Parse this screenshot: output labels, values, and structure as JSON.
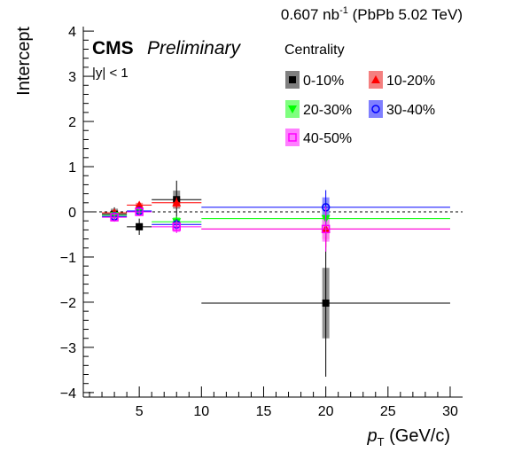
{
  "header": {
    "lumi_value": "0.607 nb",
    "lumi_exp": "-1",
    "lumi_tail": " (PbPb 5.02 TeV)"
  },
  "labels": {
    "cms": "CMS",
    "preliminary": "Preliminary",
    "rapidity": "|y| < 1"
  },
  "legend": {
    "title": "Centrality",
    "placement": "top-right"
  },
  "chart_data": {
    "type": "scatter",
    "xlabel": "p",
    "xlabel_sub": "T",
    "xlabel_unit": " (GeV/c)",
    "ylabel": "Intercept",
    "xlim": [
      0.5,
      31
    ],
    "ylim": [
      -4.1,
      4.1
    ],
    "x_ticks": [
      5,
      10,
      15,
      20,
      25,
      30
    ],
    "y_ticks": [
      -4,
      -3,
      -2,
      -1,
      0,
      1,
      2,
      3,
      4
    ],
    "reference_line": 0,
    "series": [
      {
        "name": "0-10%",
        "color": "#000000",
        "syst_color": "#7f7f7f",
        "marker": "square-filled",
        "points": [
          {
            "x": 3.0,
            "xlo": 2.0,
            "xhi": 4.0,
            "y": -0.05,
            "stat": 0.15,
            "syst": 0.12
          },
          {
            "x": 5.0,
            "xlo": 4.0,
            "xhi": 6.0,
            "y": -0.33,
            "stat": 0.18,
            "syst": 0.08
          },
          {
            "x": 8.0,
            "xlo": 6.0,
            "xhi": 10.0,
            "y": 0.27,
            "stat": 0.42,
            "syst": 0.2
          },
          {
            "x": 20.0,
            "xlo": 10.0,
            "xhi": 30.0,
            "y": -2.02,
            "stat": 1.63,
            "syst": 0.78
          }
        ]
      },
      {
        "name": "10-20%",
        "color": "#ff0000",
        "syst_color": "#f47f7f",
        "marker": "triangle-up-filled",
        "points": [
          {
            "x": 3.0,
            "xlo": 2.0,
            "xhi": 4.0,
            "y": -0.02,
            "stat": 0.08,
            "syst": 0.06
          },
          {
            "x": 5.0,
            "xlo": 4.0,
            "xhi": 6.0,
            "y": 0.15,
            "stat": 0.07,
            "syst": 0.05
          },
          {
            "x": 8.0,
            "xlo": 6.0,
            "xhi": 10.0,
            "y": 0.2,
            "stat": 0.12,
            "syst": 0.1
          },
          {
            "x": 20.0,
            "xlo": 10.0,
            "xhi": 30.0,
            "y": -0.38,
            "stat": 0.4,
            "syst": 0.22
          }
        ]
      },
      {
        "name": "20-30%",
        "color": "#00ff00",
        "syst_color": "#7fff7f",
        "marker": "triangle-down-filled",
        "points": [
          {
            "x": 3.0,
            "xlo": 2.0,
            "xhi": 4.0,
            "y": -0.08,
            "stat": 0.08,
            "syst": 0.05
          },
          {
            "x": 5.0,
            "xlo": 4.0,
            "xhi": 6.0,
            "y": 0.0,
            "stat": 0.07,
            "syst": 0.05
          },
          {
            "x": 8.0,
            "xlo": 6.0,
            "xhi": 10.0,
            "y": -0.22,
            "stat": 0.12,
            "syst": 0.1
          },
          {
            "x": 20.0,
            "xlo": 10.0,
            "xhi": 30.0,
            "y": -0.15,
            "stat": 0.4,
            "syst": 0.2
          }
        ]
      },
      {
        "name": "30-40%",
        "color": "#0000ff",
        "syst_color": "#7f7fff",
        "marker": "circle-open",
        "points": [
          {
            "x": 3.0,
            "xlo": 2.0,
            "xhi": 4.0,
            "y": -0.1,
            "stat": 0.08,
            "syst": 0.05
          },
          {
            "x": 5.0,
            "xlo": 4.0,
            "xhi": 6.0,
            "y": 0.02,
            "stat": 0.07,
            "syst": 0.05
          },
          {
            "x": 8.0,
            "xlo": 6.0,
            "xhi": 10.0,
            "y": -0.28,
            "stat": 0.12,
            "syst": 0.1
          },
          {
            "x": 20.0,
            "xlo": 10.0,
            "xhi": 30.0,
            "y": 0.1,
            "stat": 0.38,
            "syst": 0.22
          }
        ]
      },
      {
        "name": "40-50%",
        "color": "#ff00ff",
        "syst_color": "#ff7fff",
        "marker": "square-open",
        "points": [
          {
            "x": 3.0,
            "xlo": 2.0,
            "xhi": 4.0,
            "y": -0.12,
            "stat": 0.1,
            "syst": 0.08
          },
          {
            "x": 5.0,
            "xlo": 4.0,
            "xhi": 6.0,
            "y": 0.0,
            "stat": 0.08,
            "syst": 0.06
          },
          {
            "x": 8.0,
            "xlo": 6.0,
            "xhi": 10.0,
            "y": -0.33,
            "stat": 0.14,
            "syst": 0.12
          },
          {
            "x": 20.0,
            "xlo": 10.0,
            "xhi": 30.0,
            "y": -0.38,
            "stat": 0.5,
            "syst": 0.28
          }
        ]
      }
    ]
  }
}
